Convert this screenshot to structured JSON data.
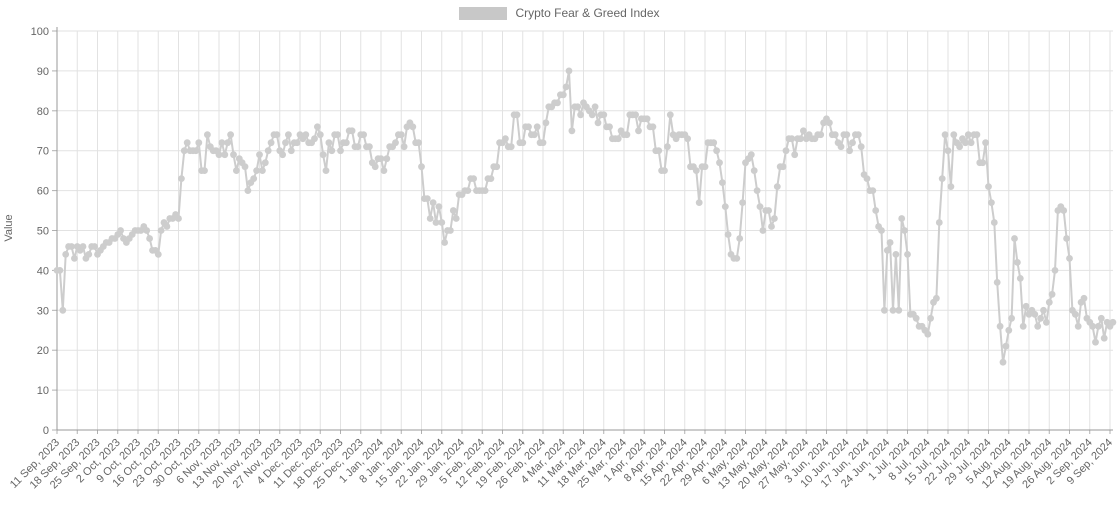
{
  "legend": {
    "label": "Crypto Fear & Greed Index",
    "swatch_color": "#c8c8c8"
  },
  "chart_data": {
    "type": "line",
    "title": "Crypto Fear & Greed Index",
    "xlabel": "",
    "ylabel": "Value",
    "ylim": [
      0,
      100
    ],
    "ytick_step": 10,
    "ytick_labels": [
      "0",
      "10",
      "20",
      "30",
      "40",
      "50",
      "60",
      "70",
      "80",
      "90",
      "100"
    ],
    "grid": true,
    "legend_position": "top-center",
    "series_name": "Crypto Fear & Greed Index",
    "series_color": "#cdcdcd",
    "marker": "circle",
    "x_start_date": "11 Sep, 2023",
    "x_end_date": "10 Sep, 2024",
    "x_tick_interval_days": 7,
    "x_tick_labels": [
      "11 Sep, 2023",
      "18 Sep, 2023",
      "25 Sep, 2023",
      "2 Oct, 2023",
      "9 Oct, 2023",
      "16 Oct, 2023",
      "23 Oct, 2023",
      "30 Oct, 2023",
      "6 Nov, 2023",
      "13 Nov, 2023",
      "20 Nov, 2023",
      "27 Nov, 2023",
      "4 Dec, 2023",
      "11 Dec, 2023",
      "18 Dec, 2023",
      "25 Dec, 2023",
      "1 Jan, 2024",
      "8 Jan, 2024",
      "15 Jan, 2024",
      "22 Jan, 2024",
      "29 Jan, 2024",
      "5 Feb, 2024",
      "12 Feb, 2024",
      "19 Feb, 2024",
      "26 Feb, 2024",
      "4 Mar, 2024",
      "11 Mar, 2024",
      "18 Mar, 2024",
      "25 Mar, 2024",
      "1 Apr, 2024",
      "8 Apr, 2024",
      "15 Apr, 2024",
      "22 Apr, 2024",
      "29 Apr, 2024",
      "6 May, 2024",
      "13 May, 2024",
      "20 May, 2024",
      "27 May, 2024",
      "3 Jun, 2024",
      "10 Jun, 2024",
      "17 Jun, 2024",
      "24 Jun, 2024",
      "1 Jul, 2024",
      "8 Jul, 2024",
      "15 Jul, 2024",
      "22 Jul, 2024",
      "29 Jul, 2024",
      "5 Aug, 2024",
      "12 Aug, 2024",
      "19 Aug, 2024",
      "26 Aug, 2024",
      "2 Sep, 2024",
      "9 Sep, 2024"
    ],
    "values": [
      40,
      40,
      30,
      44,
      46,
      46,
      43,
      46,
      45,
      46,
      43,
      44,
      46,
      46,
      44,
      45,
      46,
      47,
      47,
      48,
      48,
      49,
      50,
      48,
      47,
      48,
      49,
      50,
      50,
      50,
      51,
      50,
      48,
      45,
      45,
      44,
      50,
      52,
      51,
      53,
      53,
      54,
      53,
      63,
      70,
      72,
      70,
      70,
      70,
      72,
      65,
      65,
      74,
      71,
      70,
      70,
      69,
      72,
      69,
      72,
      74,
      69,
      65,
      68,
      67,
      66,
      60,
      62,
      63,
      65,
      69,
      65,
      67,
      70,
      72,
      74,
      74,
      70,
      69,
      72,
      74,
      70,
      72,
      72,
      74,
      73,
      74,
      72,
      72,
      73,
      76,
      74,
      69,
      65,
      72,
      70,
      74,
      74,
      70,
      72,
      72,
      75,
      75,
      71,
      71,
      74,
      74,
      71,
      71,
      67,
      66,
      68,
      68,
      65,
      68,
      71,
      71,
      72,
      74,
      74,
      71,
      76,
      77,
      76,
      72,
      72,
      66,
      58,
      58,
      53,
      57,
      52,
      56,
      52,
      47,
      50,
      50,
      55,
      53,
      59,
      59,
      60,
      60,
      63,
      63,
      60,
      60,
      60,
      60,
      63,
      63,
      66,
      66,
      72,
      72,
      73,
      71,
      71,
      79,
      79,
      72,
      72,
      76,
      76,
      74,
      74,
      76,
      72,
      72,
      77,
      81,
      81,
      82,
      82,
      84,
      84,
      86,
      90,
      75,
      81,
      81,
      79,
      82,
      81,
      80,
      79,
      81,
      77,
      79,
      79,
      76,
      76,
      73,
      73,
      73,
      75,
      74,
      74,
      79,
      79,
      79,
      75,
      78,
      78,
      78,
      76,
      76,
      70,
      70,
      65,
      65,
      71,
      79,
      74,
      73,
      74,
      74,
      74,
      73,
      66,
      66,
      65,
      57,
      66,
      66,
      72,
      72,
      72,
      70,
      67,
      62,
      56,
      49,
      44,
      43,
      43,
      48,
      57,
      67,
      68,
      69,
      65,
      60,
      56,
      50,
      55,
      55,
      51,
      53,
      61,
      66,
      66,
      70,
      73,
      73,
      69,
      73,
      73,
      75,
      73,
      74,
      73,
      73,
      74,
      74,
      77,
      78,
      77,
      74,
      74,
      72,
      71,
      74,
      74,
      70,
      72,
      74,
      74,
      71,
      64,
      63,
      60,
      60,
      55,
      51,
      50,
      30,
      45,
      47,
      30,
      44,
      30,
      53,
      50,
      44,
      29,
      29,
      28,
      26,
      26,
      25,
      24,
      28,
      32,
      33,
      52,
      63,
      74,
      70,
      61,
      74,
      72,
      71,
      73,
      72,
      74,
      72,
      74,
      74,
      67,
      67,
      72,
      61,
      57,
      52,
      37,
      26,
      17,
      21,
      25,
      28,
      48,
      42,
      38,
      26,
      31,
      29,
      30,
      29,
      26,
      28,
      30,
      27,
      32,
      34,
      40,
      55,
      56,
      55,
      48,
      43,
      30,
      29,
      26,
      32,
      33,
      28,
      27,
      26,
      22,
      26,
      28,
      23,
      27,
      26,
      27
    ],
    "colors": {
      "axis_line": "#999999",
      "grid_line": "#e2e2e2",
      "tick_mark": "#b0b0b0",
      "tick_text": "#666666",
      "background": "#ffffff"
    }
  }
}
